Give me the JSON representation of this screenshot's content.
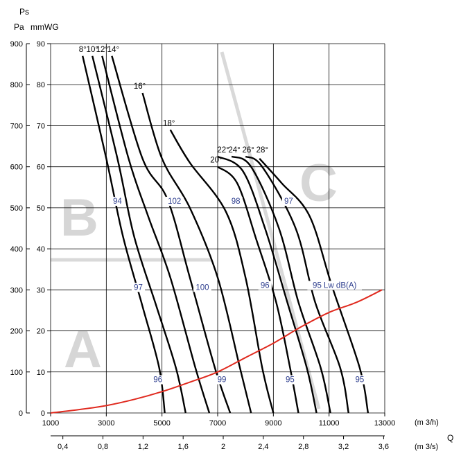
{
  "chart_data": {
    "type": "line",
    "ylabel_left_unit": "Pa",
    "ylabel_right_unit": "mmWG",
    "ylabel_symbol": "Ps",
    "x_unit_top": "(m 3/h)",
    "x_unit_bottom": "(m 3/s)",
    "x_symbol": "Q",
    "xlim": [
      1000,
      13000
    ],
    "ylim_pa": [
      0,
      900
    ],
    "ylim_mmwg": [
      0,
      90
    ],
    "x_ticks": [
      "1000",
      "3000",
      "5000",
      "7000",
      "9000",
      "11000",
      "13000"
    ],
    "x2_ticks": [
      "0,4",
      "0,8",
      "1,2",
      "1,6",
      "2",
      "2,4",
      "2,8",
      "3,2",
      "3,6"
    ],
    "y_ticks_pa": [
      "0",
      "100",
      "200",
      "300",
      "400",
      "500",
      "600",
      "700",
      "800",
      "900"
    ],
    "y_ticks_mmwg": [
      "0",
      "10",
      "20",
      "30",
      "40",
      "50",
      "60",
      "70",
      "80",
      "90"
    ],
    "grid": true,
    "background_letters": [
      "A",
      "B",
      "C"
    ],
    "system_curve_color": "#e02a1f",
    "curve_color": "#000000",
    "label_color": "#2f3f8f",
    "series": [
      {
        "name": "8°",
        "points": [
          [
            2150,
            870
          ],
          [
            3000,
            620
          ],
          [
            3600,
            430
          ],
          [
            4300,
            260
          ],
          [
            4900,
            110
          ],
          [
            5100,
            0
          ]
        ]
      },
      {
        "name": "10°",
        "points": [
          [
            2500,
            870
          ],
          [
            3400,
            620
          ],
          [
            4000,
            430
          ],
          [
            4800,
            260
          ],
          [
            5500,
            110
          ],
          [
            5850,
            0
          ]
        ]
      },
      {
        "name": "12°",
        "points": [
          [
            2850,
            870
          ],
          [
            3800,
            620
          ],
          [
            4500,
            480
          ],
          [
            5300,
            330
          ],
          [
            6200,
            110
          ],
          [
            6700,
            0
          ]
        ]
      },
      {
        "name": "14°",
        "points": [
          [
            3200,
            870
          ],
          [
            4300,
            620
          ],
          [
            5200,
            520
          ],
          [
            6000,
            330
          ],
          [
            6900,
            110
          ],
          [
            7450,
            0
          ]
        ]
      },
      {
        "name": "16°",
        "points": [
          [
            4300,
            780
          ],
          [
            5000,
            620
          ],
          [
            6000,
            500
          ],
          [
            7000,
            330
          ],
          [
            7800,
            110
          ],
          [
            8200,
            0
          ]
        ]
      },
      {
        "name": "18°",
        "points": [
          [
            5300,
            690
          ],
          [
            6000,
            610
          ],
          [
            7300,
            490
          ],
          [
            8000,
            330
          ],
          [
            8600,
            110
          ],
          [
            9000,
            0
          ]
        ]
      },
      {
        "name": "20°",
        "points": [
          [
            7000,
            600
          ],
          [
            7700,
            560
          ],
          [
            8400,
            420
          ],
          [
            9100,
            270
          ],
          [
            9600,
            110
          ],
          [
            9900,
            0
          ]
        ]
      },
      {
        "name": "22°",
        "points": [
          [
            7000,
            625
          ],
          [
            7900,
            590
          ],
          [
            8700,
            450
          ],
          [
            9500,
            270
          ],
          [
            10200,
            110
          ],
          [
            10550,
            0
          ]
        ]
      },
      {
        "name": "24°",
        "points": [
          [
            7500,
            625
          ],
          [
            8200,
            600
          ],
          [
            9200,
            450
          ],
          [
            9900,
            270
          ],
          [
            10700,
            110
          ],
          [
            11050,
            0
          ]
        ]
      },
      {
        "name": "26°",
        "points": [
          [
            8000,
            625
          ],
          [
            8600,
            600
          ],
          [
            9800,
            450
          ],
          [
            10500,
            270
          ],
          [
            11400,
            110
          ],
          [
            11700,
            0
          ]
        ]
      },
      {
        "name": "28°",
        "points": [
          [
            8500,
            620
          ],
          [
            9300,
            560
          ],
          [
            10300,
            480
          ],
          [
            11100,
            310
          ],
          [
            12100,
            110
          ],
          [
            12400,
            0
          ]
        ]
      }
    ],
    "system_curve": [
      [
        1000,
        0
      ],
      [
        2000,
        8
      ],
      [
        3000,
        18
      ],
      [
        4000,
        33
      ],
      [
        5000,
        52
      ],
      [
        6000,
        75
      ],
      [
        7000,
        100
      ],
      [
        8000,
        135
      ],
      [
        9000,
        170
      ],
      [
        10000,
        210
      ],
      [
        11000,
        245
      ],
      [
        12000,
        270
      ],
      [
        12900,
        300
      ]
    ],
    "angle_labels": [
      {
        "text": "8°",
        "x": 2150,
        "y": 880
      },
      {
        "text": "10°",
        "x": 2500,
        "y": 880
      },
      {
        "text": "12°",
        "x": 2850,
        "y": 880
      },
      {
        "text": "14°",
        "x": 3250,
        "y": 880
      },
      {
        "text": "16°",
        "x": 4200,
        "y": 790
      },
      {
        "text": "18°",
        "x": 5250,
        "y": 700
      },
      {
        "text": "20°",
        "x": 6950,
        "y": 610
      },
      {
        "text": "22°",
        "x": 7200,
        "y": 635
      },
      {
        "text": "24°",
        "x": 7600,
        "y": 635
      },
      {
        "text": "26°",
        "x": 8100,
        "y": 635
      },
      {
        "text": "28°",
        "x": 8600,
        "y": 635
      }
    ],
    "lw_labels": [
      {
        "text": "94",
        "x": 3400,
        "y": 510
      },
      {
        "text": "102",
        "x": 5450,
        "y": 510
      },
      {
        "text": "98",
        "x": 7650,
        "y": 510
      },
      {
        "text": "97",
        "x": 9550,
        "y": 510
      },
      {
        "text": "97",
        "x": 4150,
        "y": 300
      },
      {
        "text": "100",
        "x": 6450,
        "y": 300
      },
      {
        "text": "96",
        "x": 8700,
        "y": 305
      },
      {
        "text": "95 Lw dB(A)",
        "x": 11200,
        "y": 305
      },
      {
        "text": "96",
        "x": 4850,
        "y": 75
      },
      {
        "text": "99",
        "x": 7150,
        "y": 75
      },
      {
        "text": "95",
        "x": 9600,
        "y": 75
      },
      {
        "text": "95",
        "x": 12100,
        "y": 75
      }
    ]
  }
}
